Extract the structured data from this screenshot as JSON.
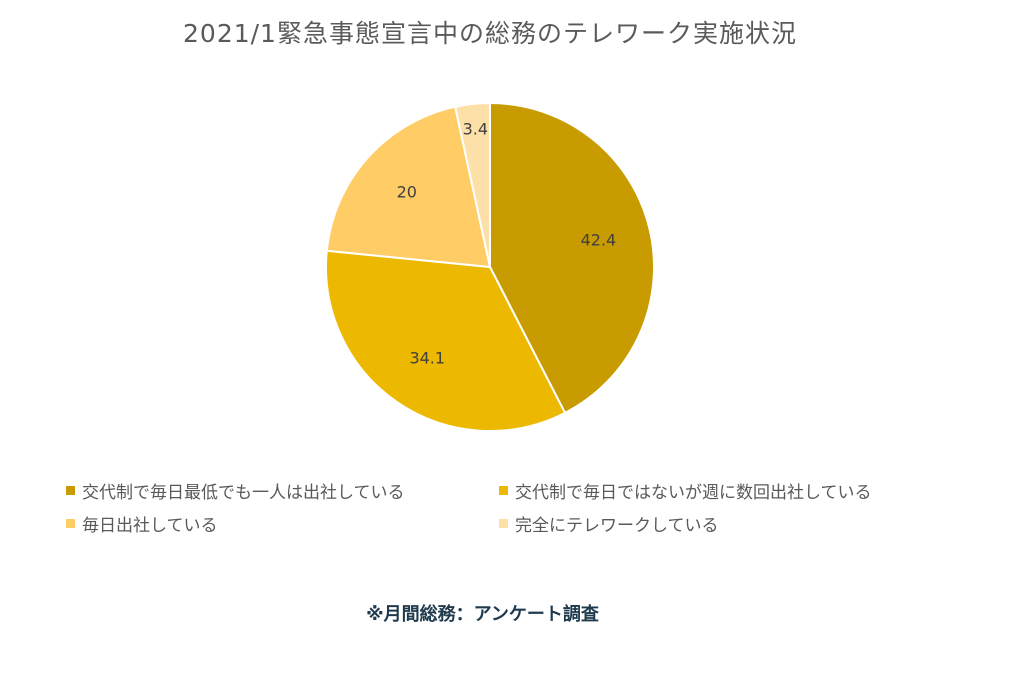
{
  "chart_data": {
    "type": "pie",
    "title": "2021/1緊急事態宣言中の総務のテレワーク実施状況",
    "categories": [
      "交代制で毎日最低でも一人は出社している",
      "交代制で毎日ではないが週に数回出社している",
      "毎日出社している",
      "完全にテレワークしている"
    ],
    "values": [
      42.4,
      34.1,
      20,
      3.4
    ],
    "data_labels": [
      "42.4",
      "34.1",
      "20",
      "3.4"
    ],
    "colors": [
      "#c89b00",
      "#ecb800",
      "#ffcc66",
      "#fde0a8"
    ],
    "legend_position": "bottom"
  },
  "source_note": "※月間総務：アンケート調査"
}
